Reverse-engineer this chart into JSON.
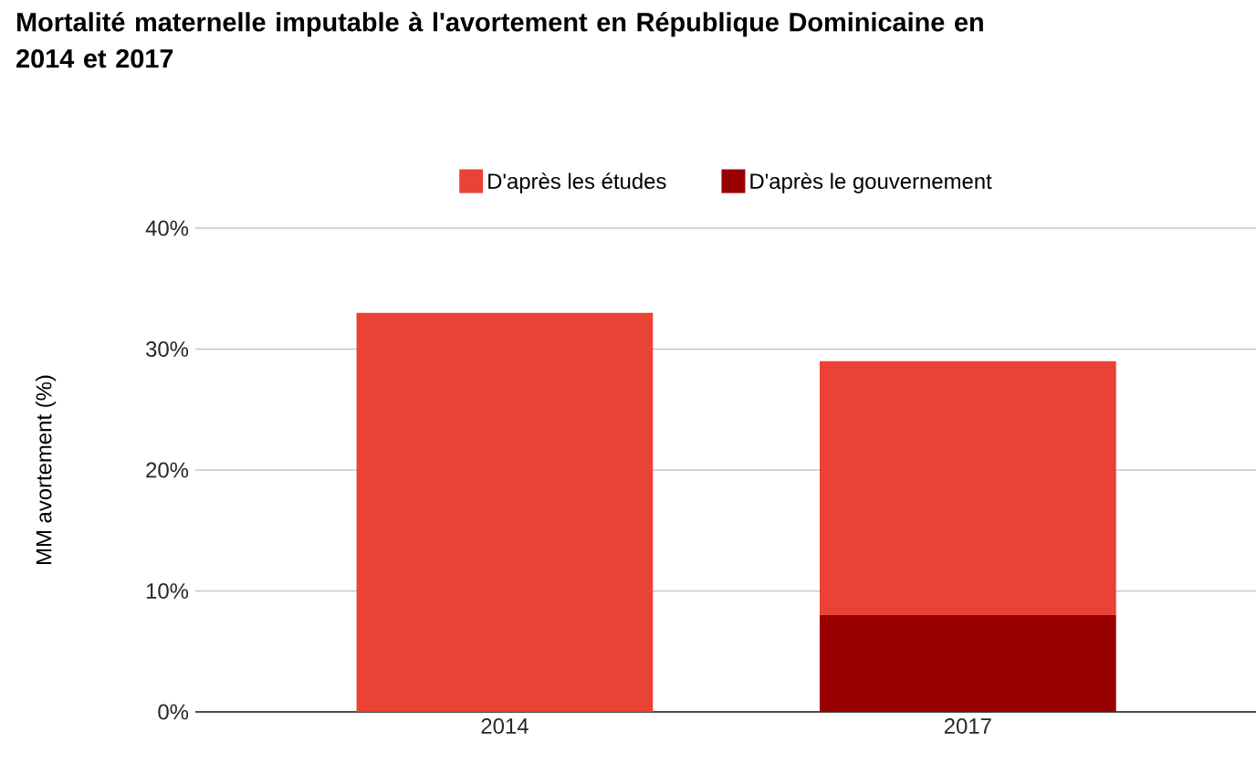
{
  "chart_data": {
    "type": "bar",
    "title": "Mortalité maternelle imputable à l'avortement en République Dominicaine en 2014 et 2017",
    "ylabel": "MM avortement (%)",
    "categories": [
      "2014",
      "2017"
    ],
    "stacked": true,
    "series": [
      {
        "name": "D'après le gouvernement",
        "color": "#990000",
        "values": [
          null,
          8
        ]
      },
      {
        "name": "D'après les études",
        "color": "#ea4335",
        "values": [
          33,
          21
        ]
      }
    ],
    "ylim": [
      0,
      40
    ],
    "yticks": [
      {
        "value": 0,
        "label": "0%"
      },
      {
        "value": 10,
        "label": "10%"
      },
      {
        "value": 20,
        "label": "20%"
      },
      {
        "value": 30,
        "label": "30%"
      },
      {
        "value": 40,
        "label": "40%"
      }
    ],
    "grid": "y",
    "legend": "top"
  }
}
